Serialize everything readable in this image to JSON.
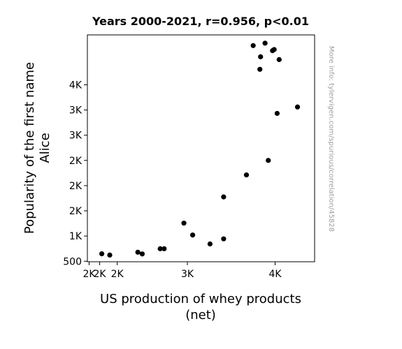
{
  "chart_data": {
    "type": "scatter",
    "title": "Years 2000-2021, r=0.956, p<0.01",
    "xlabel": [
      "US production of whey products",
      "(net)"
    ],
    "ylabel": [
      "Popularity of the first name",
      "Alice"
    ],
    "watermark": "More info: tylervigen.com/spurious/correlation/45828",
    "xlim": [
      1860,
      4450
    ],
    "ylim": [
      490,
      4990
    ],
    "x_ticks": [
      {
        "value": 1880,
        "label": "2K"
      },
      {
        "value": 2000,
        "label": "2K"
      },
      {
        "value": 2200,
        "label": "2K"
      },
      {
        "value": 3000,
        "label": "3K"
      },
      {
        "value": 4000,
        "label": "4K"
      }
    ],
    "y_ticks": [
      {
        "value": 500,
        "label": "500"
      },
      {
        "value": 1000,
        "label": "1K"
      },
      {
        "value": 1500,
        "label": "2K"
      },
      {
        "value": 2000,
        "label": "2K"
      },
      {
        "value": 2500,
        "label": "2K"
      },
      {
        "value": 3000,
        "label": "3K"
      },
      {
        "value": 3500,
        "label": "3K"
      },
      {
        "value": 4000,
        "label": "4K"
      }
    ],
    "points": [
      {
        "x": 2024,
        "y": 648
      },
      {
        "x": 2115,
        "y": 623
      },
      {
        "x": 2435,
        "y": 679
      },
      {
        "x": 2485,
        "y": 645
      },
      {
        "x": 2690,
        "y": 748
      },
      {
        "x": 2735,
        "y": 748
      },
      {
        "x": 2960,
        "y": 1256
      },
      {
        "x": 3060,
        "y": 1020
      },
      {
        "x": 3258,
        "y": 843
      },
      {
        "x": 3413,
        "y": 944
      },
      {
        "x": 3413,
        "y": 1776
      },
      {
        "x": 3673,
        "y": 2212
      },
      {
        "x": 3750,
        "y": 4778
      },
      {
        "x": 3826,
        "y": 4307
      },
      {
        "x": 3834,
        "y": 4556
      },
      {
        "x": 3885,
        "y": 4826
      },
      {
        "x": 3922,
        "y": 2500
      },
      {
        "x": 3970,
        "y": 4677
      },
      {
        "x": 3989,
        "y": 4700
      },
      {
        "x": 4023,
        "y": 3433
      },
      {
        "x": 4046,
        "y": 4500
      },
      {
        "x": 4255,
        "y": 3560
      }
    ]
  }
}
